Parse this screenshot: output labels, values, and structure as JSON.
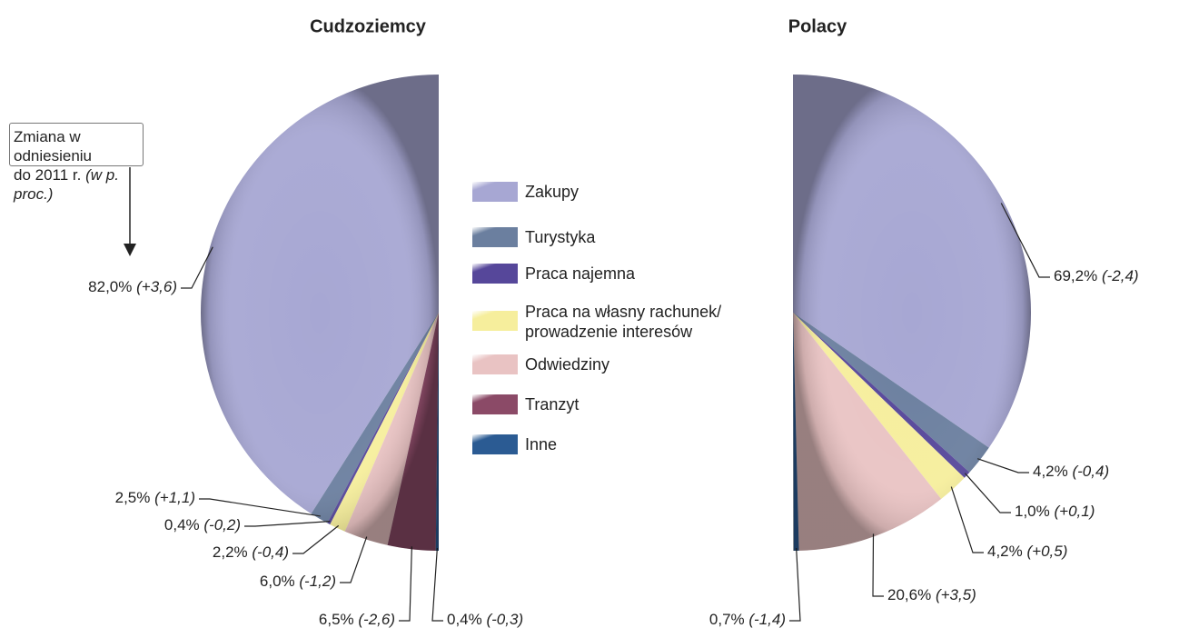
{
  "chart_data": [
    {
      "type": "pie",
      "title": "Cudzoziemcy",
      "categories": [
        "Zakupy",
        "Turystyka",
        "Praca najemna",
        "Praca na własny rachunek/\nprowadzenie interesów",
        "Odwiedziny",
        "Tranzyt",
        "Inne"
      ],
      "colors": [
        "#a7a7d3",
        "#6b7f9f",
        "#56479a",
        "#f6ee9c",
        "#e9c3c3",
        "#8b4a67",
        "#2b5b93"
      ],
      "values": [
        82.0,
        2.5,
        0.4,
        2.2,
        6.0,
        6.5,
        0.4
      ],
      "value_labels": [
        "82,0%",
        "2,5%",
        "0,4%",
        "2,2%",
        "6,0%",
        "6,5%",
        "0,4%"
      ],
      "change_labels": [
        "(+3,6)",
        "(+1,1)",
        "(-0,2)",
        "(-0,4)",
        "(-1,2)",
        "(-2,6)",
        "(-0,3)"
      ],
      "annotation": "Zmiana w odniesieniu\ndo 2011 r.",
      "annotation_unit": "(w p. proc.)"
    },
    {
      "type": "pie",
      "title": "Polacy",
      "categories": [
        "Zakupy",
        "Turystyka",
        "Praca najemna",
        "Praca na własny rachunek/\nprowadzenie interesów",
        "Odwiedziny",
        "Tranzyt",
        "Inne"
      ],
      "colors": [
        "#a7a7d3",
        "#6b7f9f",
        "#56479a",
        "#f6ee9c",
        "#e9c3c3",
        "#8b4a67",
        "#2b5b93"
      ],
      "values": [
        69.2,
        4.2,
        1.0,
        4.2,
        20.6,
        null,
        0.7
      ],
      "value_labels": [
        "69,2%",
        "4,2%",
        "1,0%",
        "4,2%",
        "20,6%",
        null,
        "0,7%"
      ],
      "change_labels": [
        "(-2,4)",
        "(-0,4)",
        "(+0,1)",
        "(+0,5)",
        "(+3,5)",
        null,
        "(-1,4)"
      ]
    }
  ]
}
